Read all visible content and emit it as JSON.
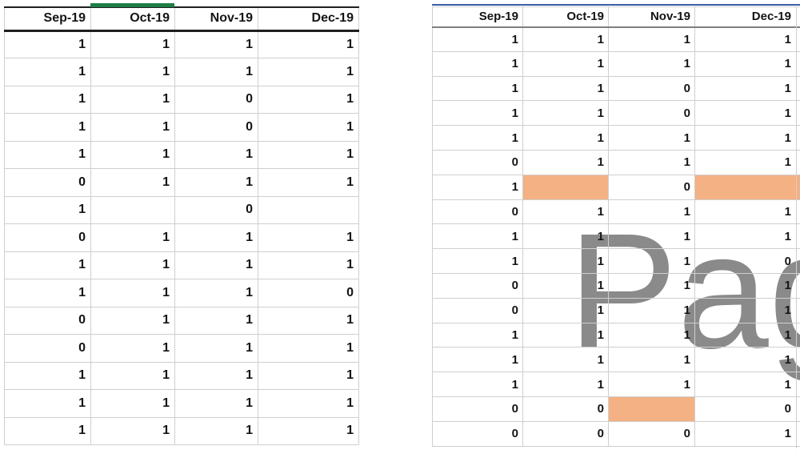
{
  "colors": {
    "selection_green": "#1e7e45",
    "top_border_blue": "#3b5caa",
    "highlight_orange": "#f4b183",
    "watermark_gray": "#8a8a8a",
    "gridline_gray": "#cfcfcf",
    "header_border_dark": "#1f1f1f",
    "header_border_gray": "#7f7f7f"
  },
  "left_table": {
    "columns": [
      "Sep-19",
      "Oct-19",
      "Nov-19",
      "Dec-19"
    ],
    "rows": [
      [
        "1",
        "1",
        "1",
        "1"
      ],
      [
        "1",
        "1",
        "1",
        "1"
      ],
      [
        "1",
        "1",
        "0",
        "1"
      ],
      [
        "1",
        "1",
        "0",
        "1"
      ],
      [
        "1",
        "1",
        "1",
        "1"
      ],
      [
        "0",
        "1",
        "1",
        "1"
      ],
      [
        "1",
        "",
        "0",
        ""
      ],
      [
        "0",
        "1",
        "1",
        "1"
      ],
      [
        "1",
        "1",
        "1",
        "1"
      ],
      [
        "1",
        "1",
        "1",
        "0"
      ],
      [
        "0",
        "1",
        "1",
        "1"
      ],
      [
        "0",
        "1",
        "1",
        "1"
      ],
      [
        "1",
        "1",
        "1",
        "1"
      ],
      [
        "1",
        "1",
        "1",
        "1"
      ],
      [
        "1",
        "1",
        "1",
        "1"
      ]
    ]
  },
  "right_table": {
    "columns": [
      "Sep-19",
      "Oct-19",
      "Nov-19",
      "Dec-19"
    ],
    "rows": [
      [
        "1",
        "1",
        "1",
        "1"
      ],
      [
        "1",
        "1",
        "1",
        "1"
      ],
      [
        "1",
        "1",
        "0",
        "1"
      ],
      [
        "1",
        "1",
        "0",
        "1"
      ],
      [
        "1",
        "1",
        "1",
        "1"
      ],
      [
        "0",
        "1",
        "1",
        "1"
      ],
      [
        "1",
        "",
        "0",
        ""
      ],
      [
        "0",
        "1",
        "1",
        "1"
      ],
      [
        "1",
        "1",
        "1",
        "1"
      ],
      [
        "1",
        "1",
        "1",
        "0"
      ],
      [
        "0",
        "1",
        "1",
        "1"
      ],
      [
        "0",
        "1",
        "1",
        "1"
      ],
      [
        "1",
        "1",
        "1",
        "1"
      ],
      [
        "1",
        "1",
        "1",
        "1"
      ],
      [
        "1",
        "1",
        "1",
        "1"
      ],
      [
        "0",
        "0",
        "",
        "0"
      ],
      [
        "0",
        "0",
        "0",
        "1"
      ]
    ],
    "highlighted_cells": [
      {
        "row": 7,
        "col": "Oct-19"
      },
      {
        "row": 7,
        "col": "Dec-19"
      },
      {
        "row": 16,
        "col": "Nov-19"
      }
    ],
    "watermark": "Pag"
  }
}
